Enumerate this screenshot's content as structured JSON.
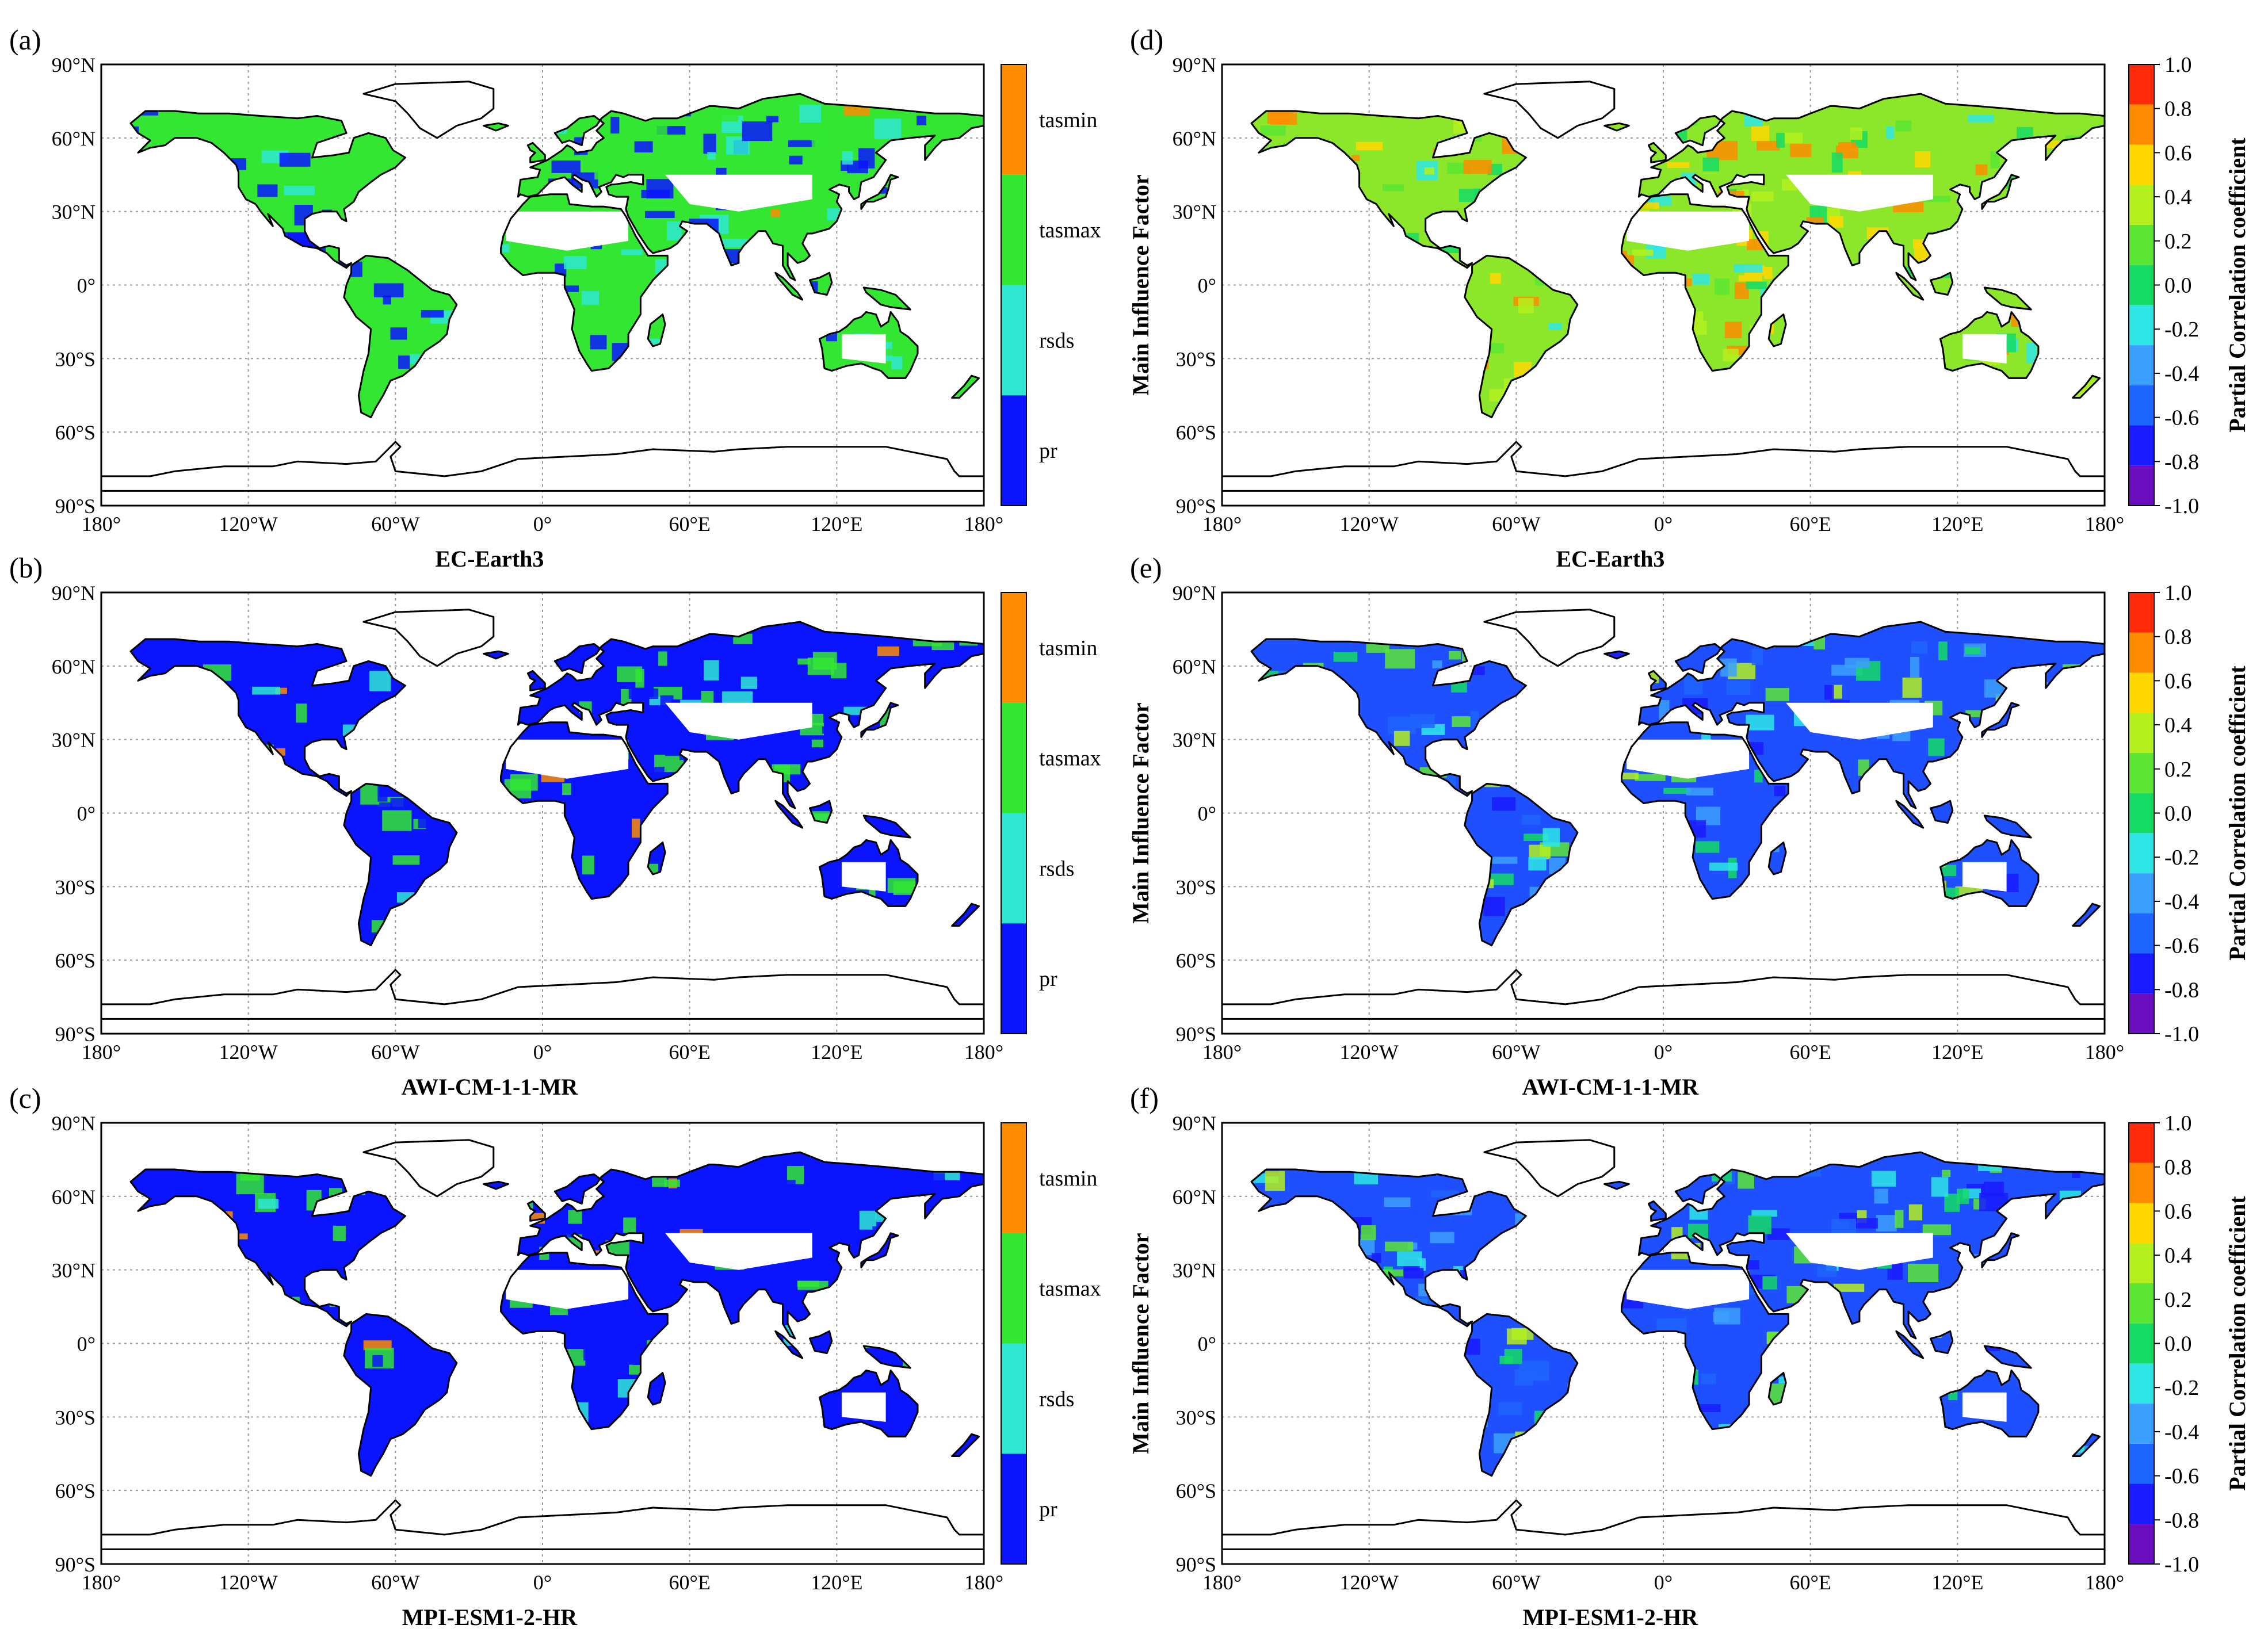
{
  "figure": {
    "panels": [
      {
        "letter": "(a)",
        "model": "EC-Earth3",
        "kind": "factor"
      },
      {
        "letter": "(b)",
        "model": "AWI-CM-1-1-MR",
        "kind": "factor"
      },
      {
        "letter": "(c)",
        "model": "MPI-ESM1-2-HR",
        "kind": "factor"
      },
      {
        "letter": "(d)",
        "model": "EC-Earth3",
        "kind": "corr"
      },
      {
        "letter": "(e)",
        "model": "AWI-CM-1-1-MR",
        "kind": "corr"
      },
      {
        "letter": "(f)",
        "model": "MPI-ESM1-2-HR",
        "kind": "corr"
      }
    ],
    "lon_ticks": [
      "180°",
      "120°W",
      "60°W",
      "0°",
      "60°E",
      "120°E",
      "180°"
    ],
    "lat_ticks": [
      "90°N",
      "60°N",
      "30°N",
      "0°",
      "30°S",
      "60°S",
      "90°S"
    ],
    "factor_colorbar": {
      "title": "Main Influence Factor",
      "categories": [
        {
          "label": "tasmin",
          "color": "#ff8c00"
        },
        {
          "label": "tasmax",
          "color": "#32e632"
        },
        {
          "label": "rsds",
          "color": "#2ee6d2"
        },
        {
          "label": "pr",
          "color": "#0a14ff"
        }
      ]
    },
    "corr_colorbar": {
      "title": "Partial Correlation coefficient",
      "tick_labels": [
        "1.0",
        "0.8",
        "0.6",
        "0.4",
        "0.2",
        "0.0",
        "-0.2",
        "-0.4",
        "-0.6",
        "-0.8",
        "-1.0"
      ],
      "colors": [
        "#6a0dbf",
        "#1a1aff",
        "#1e64ff",
        "#3ca0ff",
        "#2ee6e6",
        "#14dc64",
        "#5ae632",
        "#b4f01e",
        "#ffd700",
        "#ff8c00",
        "#ff2a0a"
      ]
    },
    "land_fill_colors": {
      "factor_a": "#32e632",
      "factor_b": "#0a14ff",
      "factor_c": "#0a14ff",
      "corr_d": "#8ce62a",
      "corr_e": "#1e50ff",
      "corr_f": "#1e50ff"
    }
  }
}
